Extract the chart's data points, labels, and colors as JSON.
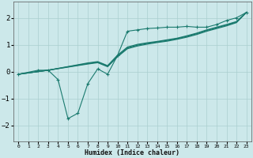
{
  "xlabel": "Humidex (Indice chaleur)",
  "bg_color": "#cce8ea",
  "line_color": "#1a7a6e",
  "grid_color": "#aacfcf",
  "xlim": [
    -0.5,
    23.5
  ],
  "ylim": [
    -2.6,
    2.6
  ],
  "xticks": [
    0,
    1,
    2,
    3,
    4,
    5,
    6,
    7,
    8,
    9,
    10,
    11,
    12,
    13,
    14,
    15,
    16,
    17,
    18,
    19,
    20,
    21,
    22,
    23
  ],
  "yticks": [
    -2,
    -1,
    0,
    1,
    2
  ],
  "lines": [
    {
      "x": [
        0,
        2,
        3,
        4,
        5,
        6,
        7,
        8,
        9,
        10,
        11,
        12,
        13,
        14,
        15,
        16,
        17,
        18,
        19,
        20,
        21,
        22,
        23
      ],
      "y": [
        -0.1,
        0.05,
        0.05,
        -0.3,
        -1.75,
        -1.55,
        -0.45,
        0.1,
        -0.1,
        0.6,
        1.5,
        1.55,
        1.6,
        1.62,
        1.65,
        1.65,
        1.68,
        1.65,
        1.65,
        1.75,
        1.9,
        2.0,
        2.2
      ],
      "marker": "+"
    },
    {
      "x": [
        0,
        3,
        7,
        8,
        9,
        10,
        11,
        12,
        13,
        14,
        15,
        16,
        17,
        18,
        19,
        20,
        21,
        22,
        23
      ],
      "y": [
        -0.1,
        0.05,
        0.28,
        0.33,
        0.18,
        0.55,
        0.85,
        0.95,
        1.02,
        1.08,
        1.13,
        1.2,
        1.28,
        1.38,
        1.5,
        1.6,
        1.7,
        1.82,
        2.2
      ],
      "marker": null
    },
    {
      "x": [
        0,
        3,
        7,
        8,
        9,
        10,
        11,
        12,
        13,
        14,
        15,
        16,
        17,
        18,
        19,
        20,
        21,
        22,
        23
      ],
      "y": [
        -0.1,
        0.05,
        0.3,
        0.35,
        0.2,
        0.58,
        0.88,
        0.98,
        1.05,
        1.1,
        1.16,
        1.22,
        1.31,
        1.41,
        1.53,
        1.63,
        1.73,
        1.84,
        2.2
      ],
      "marker": null
    },
    {
      "x": [
        0,
        3,
        7,
        8,
        9,
        10,
        11,
        12,
        13,
        14,
        15,
        16,
        17,
        18,
        19,
        20,
        21,
        22,
        23
      ],
      "y": [
        -0.1,
        0.05,
        0.32,
        0.37,
        0.22,
        0.61,
        0.91,
        1.01,
        1.07,
        1.12,
        1.18,
        1.24,
        1.33,
        1.43,
        1.55,
        1.65,
        1.75,
        1.86,
        2.2
      ],
      "marker": null
    }
  ]
}
